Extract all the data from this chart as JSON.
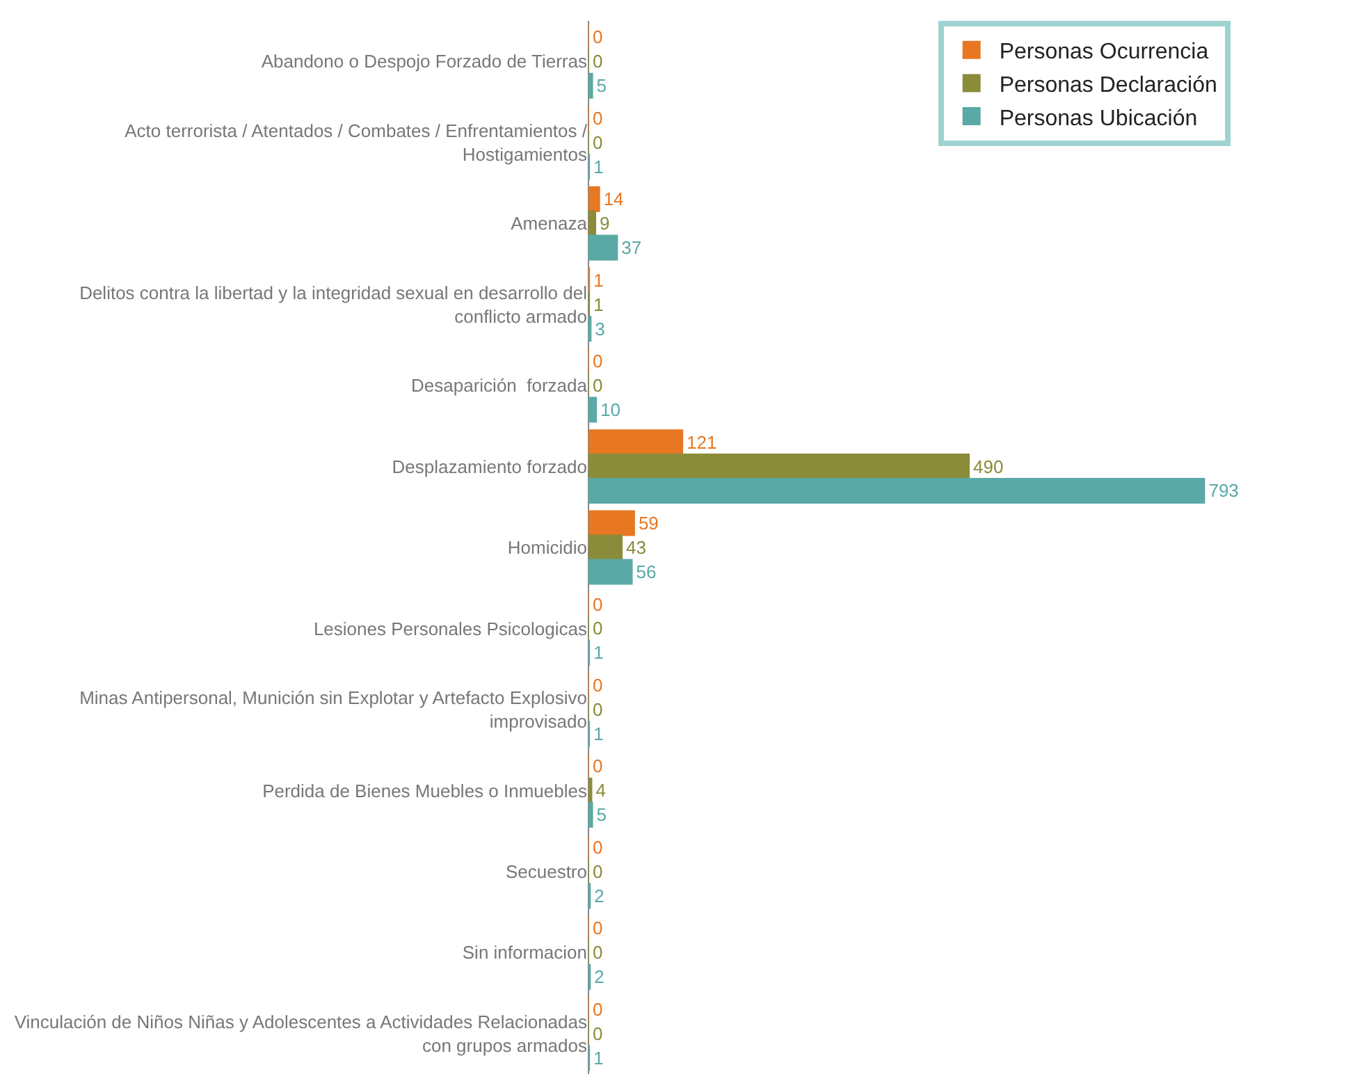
{
  "chart_data": {
    "type": "bar",
    "orientation": "horizontal",
    "data_labels": true,
    "legend": "top right",
    "categories": [
      "Abandono o Despojo Forzado de Tierras",
      "Acto terrorista / Atentados / Combates / Enfrentamientos / Hostigamientos",
      "Amenaza",
      "Delitos contra la libertad y la integridad sexual en desarrollo del conflicto armado",
      "Desaparición  forzada",
      "Desplazamiento forzado",
      "Homicidio",
      "Lesiones Personales Psicologicas",
      "Minas Antipersonal, Munición sin Explotar y Artefacto Explosivo improvisado",
      "Perdida de Bienes Muebles o Inmuebles",
      "Secuestro",
      "Sin informacion",
      "Vinculación de Niños Niñas y Adolescentes a Actividades Relacionadas con grupos armados"
    ],
    "series": [
      {
        "name": "Personas Ocurrencia",
        "color": "#e87722",
        "values": [
          0,
          0,
          14,
          1,
          0,
          121,
          59,
          0,
          0,
          0,
          0,
          0,
          0
        ]
      },
      {
        "name": "Personas Declaración",
        "color": "#8a8c3a",
        "values": [
          0,
          0,
          9,
          1,
          0,
          490,
          43,
          0,
          0,
          4,
          0,
          0,
          0
        ]
      },
      {
        "name": "Personas Ubicación",
        "color": "#5aa9a6",
        "values": [
          5,
          1,
          37,
          3,
          10,
          793,
          56,
          1,
          1,
          5,
          2,
          2,
          1
        ]
      }
    ]
  }
}
